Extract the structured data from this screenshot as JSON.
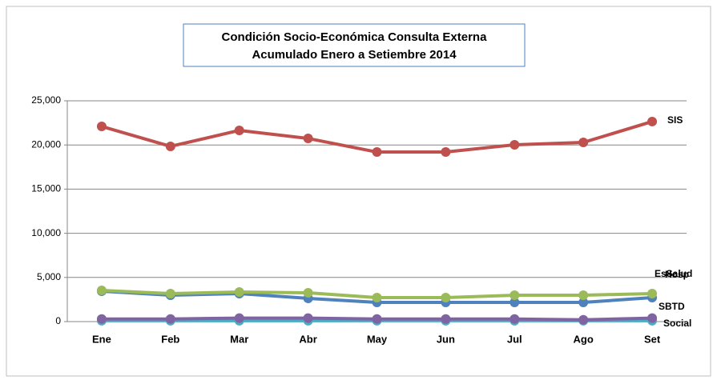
{
  "chart_data": {
    "type": "line",
    "title": "Condición Socio-Económica Consulta Externa",
    "subtitle": "Acumulado Enero  a  Setiembre 2014",
    "categories": [
      "Ene",
      "Feb",
      "Mar",
      "Abr",
      "May",
      "Jun",
      "Jul",
      "Ago",
      "Set"
    ],
    "series": [
      {
        "name": "SIS",
        "color": "#c0504d",
        "values": [
          22100,
          19840,
          21650,
          20740,
          19200,
          19200,
          20020,
          20290,
          22650
        ]
      },
      {
        "name": "EsSalud",
        "color": "#9bbb59",
        "values": [
          3530,
          3170,
          3350,
          3260,
          2720,
          2720,
          2990,
          2990,
          3170
        ]
      },
      {
        "name": "Hosp",
        "color": "#4f81bd",
        "values": [
          3440,
          2990,
          3170,
          2630,
          2170,
          2170,
          2170,
          2170,
          2720
        ]
      },
      {
        "name": "SBTD",
        "color": "#8064a2",
        "values": [
          300,
          300,
          400,
          400,
          300,
          300,
          300,
          200,
          400
        ]
      },
      {
        "name": "Social",
        "color": "#4bacc6",
        "values": [
          100,
          100,
          100,
          100,
          100,
          100,
          100,
          100,
          100
        ]
      }
    ],
    "ylim": [
      0,
      25000
    ],
    "yticks": [
      0,
      {
        "value": 5000,
        "label": "5,000"
      },
      {
        "value": 10000,
        "label": "10,000"
      },
      {
        "value": 15000,
        "label": "15,000"
      },
      {
        "value": 20000,
        "label": "20,000"
      },
      {
        "value": 25000,
        "label": "25,000"
      }
    ],
    "grid": true
  }
}
